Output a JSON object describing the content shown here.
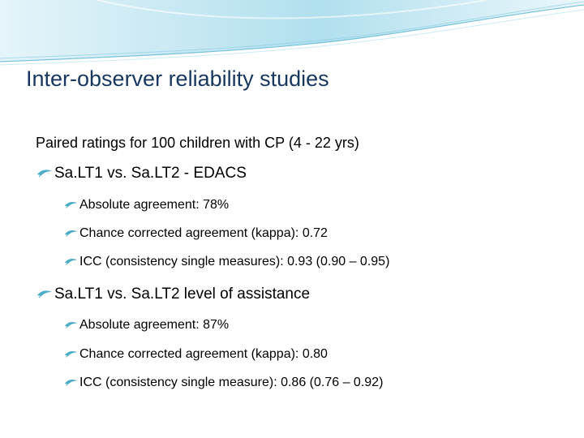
{
  "slide": {
    "title": "Inter-observer reliability studies",
    "intro": "Paired ratings for 100 children with CP (4 - 22 yrs)",
    "sections": [
      {
        "heading": "Sa.LT1 vs. Sa.LT2 - EDACS",
        "items": [
          "Absolute agreement: 78%",
          "Chance corrected agreement (kappa): 0.72",
          "ICC (consistency single measures): 0.93 (0.90 – 0.95)"
        ]
      },
      {
        "heading": "Sa.LT1 vs. Sa.LT2 level of assistance",
        "items": [
          "Absolute agreement: 87%",
          "Chance corrected agreement (kappa): 0.80",
          "ICC (consistency single measure): 0.86 (0.76 – 0.92)"
        ]
      }
    ],
    "bullet_icon": "feather-arrow-icon",
    "colors": {
      "title": "#17375e",
      "wave_accent": "#8dd0e6",
      "bullet": "#4bacc6"
    }
  }
}
